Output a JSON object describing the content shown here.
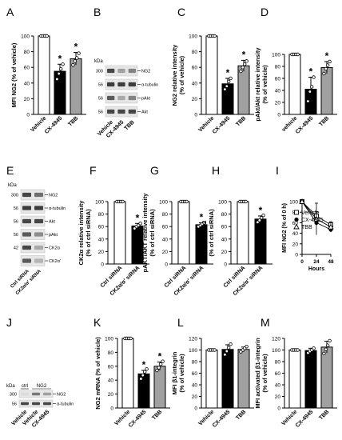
{
  "panels": [
    {
      "letter": "A"
    },
    {
      "letter": "B"
    },
    {
      "letter": "C"
    },
    {
      "letter": "D"
    },
    {
      "letter": "E"
    },
    {
      "letter": "F"
    },
    {
      "letter": "G"
    },
    {
      "letter": "H"
    },
    {
      "letter": "I"
    },
    {
      "letter": "J"
    },
    {
      "letter": "K"
    },
    {
      "letter": "L"
    },
    {
      "letter": "M"
    }
  ],
  "blots": {
    "B": {
      "kda_label": "kDa",
      "rows": [
        {
          "kda": "300",
          "label": "NG2"
        },
        {
          "kda": "56",
          "label": "α-tubulin"
        },
        {
          "kda": "56",
          "label": "pAkt"
        },
        {
          "kda": "56",
          "label": "Akt"
        }
      ],
      "lanes": [
        "Vehicle",
        "CX-4945",
        "TBB"
      ]
    },
    "E": {
      "kda_label": "kDa",
      "rows": [
        {
          "kda": "300",
          "label": "NG2"
        },
        {
          "kda": "56",
          "label": "α-tubulin"
        },
        {
          "kda": "56",
          "label": "Akt"
        },
        {
          "kda": "56",
          "label": "pAkt"
        },
        {
          "kda": "42",
          "label": "CK2α"
        },
        {
          "kda": "",
          "label": "CK2α'"
        }
      ],
      "lanes": [
        "Ctrl siRNA",
        "CK2α/α' siRNA"
      ]
    },
    "J": {
      "kda_label": "kDa",
      "groups": [
        "ctrl",
        "NG2"
      ],
      "rows": [
        {
          "kda": "300",
          "label": "NG2"
        },
        {
          "kda": "56",
          "label": "α-tubulin"
        }
      ],
      "lanes": [
        "Vehicle",
        "Vehicle",
        "CX-4945"
      ]
    }
  },
  "chart_data": [
    {
      "panel": "A",
      "type": "bar",
      "categories": [
        "Vehicle",
        "CX-4945",
        "TBB"
      ],
      "values": [
        100,
        55,
        71
      ],
      "errors": [
        0,
        9,
        8
      ],
      "colors": [
        "#ffffff",
        "#000000",
        "#a0a0a0"
      ],
      "significance": [
        "",
        "*",
        "*"
      ],
      "ylabel": "MFI NG2 (% of vehicle)",
      "ylim": [
        0,
        100
      ],
      "yticks": [
        "0",
        "20",
        "40",
        "60",
        "80",
        "100"
      ],
      "points": [
        [
          100,
          100,
          100,
          100
        ],
        [
          45,
          52,
          58,
          64
        ],
        [
          63,
          68,
          72,
          78
        ]
      ]
    },
    {
      "panel": "C",
      "type": "bar",
      "categories": [
        "Vehicle",
        "CX-4945",
        "TBB"
      ],
      "values": [
        100,
        39,
        62
      ],
      "errors": [
        0,
        7,
        7
      ],
      "colors": [
        "#ffffff",
        "#000000",
        "#a0a0a0"
      ],
      "significance": [
        "",
        "*",
        "*"
      ],
      "ylabel": "NG2 relative intensity (% of vehicle)",
      "ylim": [
        0,
        100
      ],
      "yticks": [
        "0",
        "20",
        "40",
        "60",
        "80",
        "100"
      ],
      "points": [
        [
          100,
          100,
          100,
          100
        ],
        [
          32,
          36,
          42,
          46
        ],
        [
          55,
          60,
          64,
          68
        ]
      ]
    },
    {
      "panel": "D",
      "type": "bar",
      "categories": [
        "vehicle",
        "CX-4945",
        "TBB"
      ],
      "values": [
        100,
        42,
        78
      ],
      "errors": [
        0,
        20,
        10
      ],
      "colors": [
        "#ffffff",
        "#000000",
        "#a0a0a0"
      ],
      "significance": [
        "",
        "*",
        "*"
      ],
      "ylabel": "pAkt/Akt relative intensity (% of vehicle)",
      "ylim": [
        0,
        100
      ],
      "yticks": [
        "0",
        "20",
        "40",
        "60",
        "80",
        "100"
      ],
      "points": [
        [
          100,
          100,
          100,
          100
        ],
        [
          22,
          38,
          46,
          62
        ],
        [
          68,
          76,
          82,
          88
        ]
      ]
    },
    {
      "panel": "F",
      "type": "bar",
      "categories": [
        "Ctrl siRNA",
        "CK2α/α' siRNA"
      ],
      "values": [
        100,
        61
      ],
      "errors": [
        0,
        4
      ],
      "colors": [
        "#ffffff",
        "#000000"
      ],
      "significance": [
        "",
        "*"
      ],
      "ylabel": "CK2α relative intensity (% of ctrl siRNA)",
      "ylim": [
        0,
        100
      ],
      "yticks": [
        "0",
        "20",
        "40",
        "60",
        "80",
        "100"
      ],
      "points": [
        [
          100,
          100,
          100,
          100
        ],
        [
          57,
          60,
          62,
          65
        ]
      ]
    },
    {
      "panel": "G",
      "type": "bar",
      "categories": [
        "Ctrl siRNA",
        "CK2α/α' siRNA"
      ],
      "values": [
        100,
        63
      ],
      "errors": [
        0,
        3
      ],
      "colors": [
        "#ffffff",
        "#000000"
      ],
      "significance": [
        "",
        "*"
      ],
      "ylabel": "pAKT/AKT relative intensity (% of ctrl siRNA)",
      "ylim": [
        0,
        100
      ],
      "yticks": [
        "0",
        "20",
        "40",
        "60",
        "80",
        "100"
      ],
      "points": [
        [
          100,
          100,
          100,
          100
        ],
        [
          60,
          62,
          64,
          66
        ]
      ]
    },
    {
      "panel": "H",
      "type": "bar",
      "categories": [
        "Ctrl siRNA",
        "CK2α/α' siRNA"
      ],
      "values": [
        100,
        72
      ],
      "errors": [
        0,
        5
      ],
      "colors": [
        "#ffffff",
        "#000000"
      ],
      "significance": [
        "",
        "*"
      ],
      "ylabel": "MFI NG2 (% of ctrl siRNA)",
      "ylim": [
        0,
        100
      ],
      "yticks": [
        "0",
        "20",
        "40",
        "60",
        "80",
        "100"
      ],
      "points": [
        [
          100,
          100,
          100,
          100
        ],
        [
          67,
          70,
          74,
          78
        ]
      ]
    },
    {
      "panel": "I",
      "type": "line",
      "x": [
        0,
        24,
        48
      ],
      "xticks": [
        "0",
        "24",
        "48"
      ],
      "xlabel": "Hours",
      "ylabel": "MFI NG2 (% of 0 h)",
      "ylim": [
        0,
        100
      ],
      "yticks": [
        "0",
        "20",
        "40",
        "60",
        "80",
        "100"
      ],
      "series": [
        {
          "name": "Vehicle",
          "values": [
            100,
            73,
            56
          ],
          "errors": [
            0,
            8,
            6
          ],
          "marker": "open-square"
        },
        {
          "name": "CX-4945",
          "values": [
            100,
            60,
            47
          ],
          "errors": [
            0,
            5,
            5
          ],
          "marker": "filled-circle"
        },
        {
          "name": "TBB",
          "values": [
            100,
            67,
            52
          ],
          "errors": [
            0,
            30,
            8
          ],
          "marker": "open-triangle"
        }
      ]
    },
    {
      "panel": "K",
      "type": "bar",
      "categories": [
        "Vehicle",
        "CX-4945",
        "TBB"
      ],
      "values": [
        100,
        49,
        60
      ],
      "errors": [
        0,
        5,
        6
      ],
      "colors": [
        "#ffffff",
        "#000000",
        "#a0a0a0"
      ],
      "significance": [
        "",
        "*",
        "*"
      ],
      "ylabel": "NG2 mRNA (% of vehicle)",
      "ylim": [
        0,
        100
      ],
      "yticks": [
        "0",
        "20",
        "40",
        "60",
        "80",
        "100"
      ],
      "points": [
        [
          100,
          100,
          100,
          100
        ],
        [
          42,
          47,
          52,
          56
        ],
        [
          54,
          58,
          63,
          67
        ]
      ]
    },
    {
      "panel": "L",
      "type": "bar",
      "categories": [
        "Vehicle",
        "CX-4945",
        "TBB"
      ],
      "values": [
        100,
        101,
        101
      ],
      "errors": [
        0,
        8,
        4
      ],
      "colors": [
        "#ffffff",
        "#000000",
        "#a0a0a0"
      ],
      "significance": [
        "",
        "",
        ""
      ],
      "ylabel": "MFI β1-integrin (% of vehicle)",
      "ylim": [
        0,
        120
      ],
      "yticks": [
        "0",
        "20",
        "40",
        "60",
        "80",
        "100",
        "120"
      ],
      "points": [
        [
          100,
          100,
          100,
          100
        ],
        [
          92,
          98,
          104,
          110
        ],
        [
          97,
          100,
          103,
          106
        ]
      ]
    },
    {
      "panel": "M",
      "type": "bar",
      "categories": [
        "Vehicle",
        "CX-4945",
        "TBB"
      ],
      "values": [
        100,
        99,
        105
      ],
      "errors": [
        0,
        4,
        10
      ],
      "colors": [
        "#ffffff",
        "#000000",
        "#a0a0a0"
      ],
      "significance": [
        "",
        "",
        ""
      ],
      "ylabel": "MFI activated β1-integrin (% of vehicle)",
      "ylim": [
        0,
        120
      ],
      "yticks": [
        "0",
        "20",
        "40",
        "60",
        "80",
        "100",
        "120"
      ],
      "points": [
        [
          100,
          100,
          100,
          100
        ],
        [
          95,
          98,
          100,
          103
        ],
        [
          94,
          101,
          108,
          116
        ]
      ]
    }
  ]
}
